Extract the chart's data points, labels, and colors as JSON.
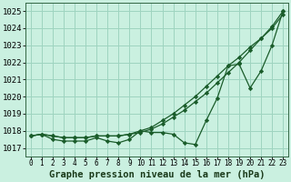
{
  "title": "Graphe pression niveau de la mer (hPa)",
  "xlim": [
    -0.5,
    23.5
  ],
  "ylim": [
    1016.5,
    1025.5
  ],
  "yticks": [
    1017,
    1018,
    1019,
    1020,
    1021,
    1022,
    1023,
    1024,
    1025
  ],
  "xticks": [
    0,
    1,
    2,
    3,
    4,
    5,
    6,
    7,
    8,
    9,
    10,
    11,
    12,
    13,
    14,
    15,
    16,
    17,
    18,
    19,
    20,
    21,
    22,
    23
  ],
  "bg_color": "#caf0e0",
  "grid_color": "#9ed4bf",
  "line_color": "#1a5c2a",
  "line1_x": [
    0,
    1,
    2,
    3,
    4,
    5,
    6,
    7,
    8,
    9,
    10,
    11,
    12,
    13,
    14,
    15,
    16,
    17,
    18,
    19,
    20,
    21,
    22,
    23
  ],
  "line1_y": [
    1017.7,
    1017.8,
    1017.7,
    1017.6,
    1017.6,
    1017.6,
    1017.7,
    1017.7,
    1017.7,
    1017.8,
    1017.9,
    1018.1,
    1018.4,
    1018.8,
    1019.2,
    1019.7,
    1020.2,
    1020.8,
    1021.4,
    1022.0,
    1022.7,
    1023.4,
    1024.1,
    1025.0
  ],
  "line2_x": [
    0,
    1,
    2,
    3,
    4,
    5,
    6,
    7,
    8,
    9,
    10,
    11,
    12,
    13,
    14,
    15,
    16,
    17,
    18,
    19,
    20,
    21,
    22,
    23
  ],
  "line2_y": [
    1017.7,
    1017.8,
    1017.7,
    1017.6,
    1017.6,
    1017.6,
    1017.7,
    1017.7,
    1017.7,
    1017.8,
    1018.0,
    1018.2,
    1018.6,
    1019.0,
    1019.5,
    1020.0,
    1020.6,
    1021.2,
    1021.8,
    1022.3,
    1022.9,
    1023.4,
    1024.0,
    1024.8
  ],
  "line3_x": [
    0,
    1,
    2,
    3,
    4,
    5,
    6,
    7,
    8,
    9,
    10,
    11,
    12,
    13,
    14,
    15,
    16,
    17,
    18,
    19,
    20,
    21,
    22,
    23
  ],
  "line3_y": [
    1017.7,
    1017.8,
    1017.5,
    1017.4,
    1017.4,
    1017.4,
    1017.6,
    1017.4,
    1017.3,
    1017.5,
    1018.0,
    1017.9,
    1017.9,
    1017.8,
    1017.3,
    1017.2,
    1018.6,
    1019.9,
    1021.8,
    1021.9,
    1020.5,
    1021.5,
    1023.0,
    1025.0
  ],
  "xlabel_fontsize": 7.5,
  "ytick_fontsize": 6.5,
  "xtick_fontsize": 5.5
}
